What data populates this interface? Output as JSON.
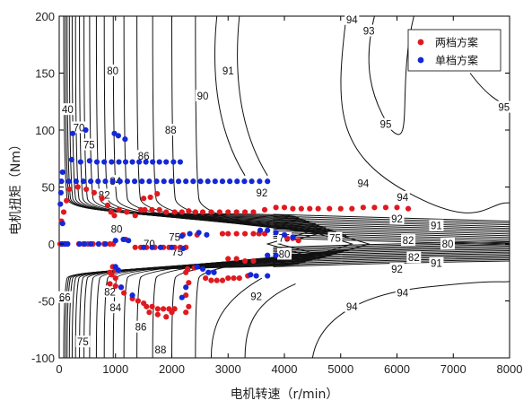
{
  "chart_data": {
    "type": "scatter",
    "title": "",
    "xlabel": "电机转速（r/min）",
    "ylabel": "电机扭矩（Nm）",
    "xlim": [
      0,
      8000
    ],
    "ylim": [
      -100,
      200
    ],
    "xticks": [
      "0",
      "1000",
      "2000",
      "3000",
      "4000",
      "5000",
      "6000",
      "7000",
      "8000"
    ],
    "yticks": [
      "200",
      "150",
      "100",
      "50",
      "0",
      "-50",
      "-100"
    ],
    "legend_position": "top-right",
    "contour_labels": [
      {
        "text": "94",
        "x": 5200,
        "y": 197
      },
      {
        "text": "93",
        "x": 5500,
        "y": 187
      },
      {
        "text": "80",
        "x": 950,
        "y": 152
      },
      {
        "text": "90",
        "x": 2550,
        "y": 130
      },
      {
        "text": "91",
        "x": 3000,
        "y": 152
      },
      {
        "text": "95",
        "x": 5800,
        "y": 105
      },
      {
        "text": "95",
        "x": 7900,
        "y": 120
      },
      {
        "text": "40",
        "x": 150,
        "y": 118
      },
      {
        "text": "70",
        "x": 350,
        "y": 102
      },
      {
        "text": "75",
        "x": 530,
        "y": 87
      },
      {
        "text": "88",
        "x": 1980,
        "y": 100
      },
      {
        "text": "86",
        "x": 1500,
        "y": 77
      },
      {
        "text": "84",
        "x": 1000,
        "y": 55
      },
      {
        "text": "82",
        "x": 800,
        "y": 43
      },
      {
        "text": "94",
        "x": 5400,
        "y": 53
      },
      {
        "text": "94",
        "x": 6100,
        "y": 41
      },
      {
        "text": "92",
        "x": 3600,
        "y": 45
      },
      {
        "text": "92",
        "x": 6000,
        "y": 22
      },
      {
        "text": "91",
        "x": 6700,
        "y": 16
      },
      {
        "text": "80",
        "x": 1020,
        "y": 13
      },
      {
        "text": "75",
        "x": 2050,
        "y": 6
      },
      {
        "text": "70",
        "x": 1600,
        "y": 0
      },
      {
        "text": "75",
        "x": 2100,
        "y": -7
      },
      {
        "text": "75",
        "x": 4000,
        "y": 5
      },
      {
        "text": "75",
        "x": 4900,
        "y": 5
      },
      {
        "text": "80",
        "x": 4000,
        "y": -9
      },
      {
        "text": "82",
        "x": 6200,
        "y": 3
      },
      {
        "text": "80",
        "x": 6900,
        "y": 0
      },
      {
        "text": "82",
        "x": 6300,
        "y": -12
      },
      {
        "text": "91",
        "x": 6700,
        "y": -17
      },
      {
        "text": "92",
        "x": 6000,
        "y": -22
      },
      {
        "text": "82",
        "x": 900,
        "y": -42
      },
      {
        "text": "84",
        "x": 1000,
        "y": -56
      },
      {
        "text": "86",
        "x": 1450,
        "y": -73
      },
      {
        "text": "88",
        "x": 1800,
        "y": -93
      },
      {
        "text": "92",
        "x": 3500,
        "y": -46
      },
      {
        "text": "94",
        "x": 6100,
        "y": -43
      },
      {
        "text": "94",
        "x": 5200,
        "y": -55
      },
      {
        "text": "75",
        "x": 420,
        "y": -86
      },
      {
        "text": "66",
        "x": 100,
        "y": -47
      }
    ],
    "series": [
      {
        "name": "两档方案",
        "color": "#e0191f",
        "points": [
          [
            15,
            0
          ],
          [
            50,
            0
          ],
          [
            100,
            0
          ],
          [
            40,
            20
          ],
          [
            80,
            28
          ],
          [
            130,
            38
          ],
          [
            180,
            48
          ],
          [
            330,
            50
          ],
          [
            480,
            48
          ],
          [
            620,
            45
          ],
          [
            760,
            40
          ],
          [
            860,
            34
          ],
          [
            920,
            28
          ],
          [
            980,
            25
          ],
          [
            1060,
            30
          ],
          [
            1200,
            28
          ],
          [
            1350,
            25
          ],
          [
            1450,
            30
          ],
          [
            1520,
            30
          ],
          [
            1650,
            30
          ],
          [
            1780,
            30
          ],
          [
            1900,
            28
          ],
          [
            2050,
            28
          ],
          [
            2180,
            28
          ],
          [
            2300,
            29
          ],
          [
            2420,
            28
          ],
          [
            2550,
            28
          ],
          [
            2700,
            28
          ],
          [
            2850,
            28
          ],
          [
            3000,
            28
          ],
          [
            3150,
            28
          ],
          [
            3300,
            28
          ],
          [
            3450,
            28
          ],
          [
            3650,
            30
          ],
          [
            3850,
            32
          ],
          [
            4000,
            32
          ],
          [
            4150,
            31
          ],
          [
            4300,
            31
          ],
          [
            4450,
            31
          ],
          [
            4600,
            31
          ],
          [
            4800,
            31
          ],
          [
            5000,
            31
          ],
          [
            5200,
            31
          ],
          [
            5400,
            32
          ],
          [
            5600,
            32
          ],
          [
            5800,
            32
          ],
          [
            6000,
            32
          ],
          [
            6200,
            31
          ],
          [
            1500,
            40
          ],
          [
            1620,
            41
          ],
          [
            1740,
            44
          ],
          [
            350,
            0
          ],
          [
            430,
            0
          ],
          [
            510,
            0
          ],
          [
            600,
            0
          ],
          [
            700,
            0
          ],
          [
            800,
            0
          ],
          [
            900,
            0
          ],
          [
            960,
            0
          ],
          [
            1180,
            4
          ],
          [
            2200,
            8
          ],
          [
            2450,
            8
          ],
          [
            2900,
            9
          ],
          [
            3000,
            9
          ],
          [
            3150,
            9
          ],
          [
            3300,
            9
          ],
          [
            3450,
            9
          ],
          [
            3550,
            9
          ],
          [
            3650,
            9
          ],
          [
            4050,
            5
          ],
          [
            4150,
            5
          ],
          [
            4250,
            3
          ],
          [
            1350,
            -3
          ],
          [
            1450,
            -3
          ],
          [
            1550,
            -3
          ],
          [
            1700,
            -3
          ],
          [
            1850,
            -3
          ],
          [
            1950,
            -3
          ],
          [
            2050,
            -3
          ],
          [
            2150,
            -3
          ],
          [
            2250,
            -3
          ],
          [
            3000,
            -13
          ],
          [
            3150,
            -13
          ],
          [
            3300,
            -15
          ],
          [
            3450,
            -15
          ],
          [
            950,
            -20
          ],
          [
            1000,
            -23
          ],
          [
            900,
            -25
          ],
          [
            930,
            -27
          ],
          [
            1000,
            -30
          ],
          [
            900,
            -35
          ],
          [
            1000,
            -37
          ],
          [
            1100,
            -38
          ],
          [
            1150,
            -43
          ],
          [
            2400,
            -21
          ],
          [
            2280,
            -22
          ],
          [
            2250,
            -25
          ],
          [
            2300,
            -34
          ],
          [
            2250,
            -45
          ],
          [
            2300,
            -55
          ],
          [
            2250,
            -60
          ],
          [
            2600,
            -30
          ],
          [
            2700,
            -32
          ],
          [
            2800,
            -32
          ],
          [
            2900,
            -32
          ],
          [
            3000,
            -30
          ],
          [
            3100,
            -30
          ],
          [
            3200,
            -30
          ],
          [
            3350,
            -28
          ],
          [
            1300,
            -48
          ],
          [
            1400,
            -50
          ],
          [
            1500,
            -52
          ],
          [
            1550,
            -55
          ],
          [
            1650,
            -55
          ],
          [
            1750,
            -57
          ],
          [
            1850,
            -57
          ],
          [
            1950,
            -57
          ],
          [
            2050,
            -57
          ],
          [
            1600,
            -60
          ],
          [
            1750,
            -62
          ],
          [
            1900,
            -64
          ],
          [
            2000,
            -60
          ]
        ]
      },
      {
        "name": "单档方案",
        "color": "#1428d8",
        "points": [
          [
            60,
            63
          ],
          [
            40,
            55
          ],
          [
            30,
            45
          ],
          [
            20,
            35
          ],
          [
            60,
            18
          ],
          [
            50,
            0
          ],
          [
            100,
            0
          ],
          [
            150,
            0
          ],
          [
            240,
            97
          ],
          [
            470,
            100
          ],
          [
            980,
            97
          ],
          [
            1050,
            95
          ],
          [
            1170,
            92
          ],
          [
            220,
            74
          ],
          [
            380,
            72
          ],
          [
            540,
            73
          ],
          [
            670,
            72
          ],
          [
            800,
            72
          ],
          [
            930,
            72
          ],
          [
            1060,
            72
          ],
          [
            1180,
            72
          ],
          [
            1300,
            72
          ],
          [
            1420,
            72
          ],
          [
            1540,
            72
          ],
          [
            1660,
            72
          ],
          [
            1780,
            72
          ],
          [
            1900,
            72
          ],
          [
            2030,
            72
          ],
          [
            2150,
            72
          ],
          [
            170,
            55
          ],
          [
            300,
            55
          ],
          [
            430,
            55
          ],
          [
            560,
            55
          ],
          [
            690,
            55
          ],
          [
            820,
            55
          ],
          [
            950,
            55
          ],
          [
            1080,
            55
          ],
          [
            1210,
            55
          ],
          [
            1340,
            55
          ],
          [
            1470,
            55
          ],
          [
            1600,
            55
          ],
          [
            1730,
            55
          ],
          [
            1860,
            55
          ],
          [
            1990,
            55
          ],
          [
            2120,
            55
          ],
          [
            2250,
            55
          ],
          [
            2380,
            55
          ],
          [
            2510,
            55
          ],
          [
            2640,
            55
          ],
          [
            2770,
            55
          ],
          [
            2900,
            55
          ],
          [
            3030,
            55
          ],
          [
            3160,
            55
          ],
          [
            3290,
            55
          ],
          [
            3420,
            55
          ],
          [
            3560,
            55
          ],
          [
            3700,
            55
          ],
          [
            360,
            0
          ],
          [
            450,
            0
          ],
          [
            560,
            0
          ],
          [
            700,
            0
          ],
          [
            820,
            0
          ],
          [
            1000,
            3
          ],
          [
            1140,
            4
          ],
          [
            1230,
            3
          ],
          [
            2180,
            7
          ],
          [
            2320,
            9
          ],
          [
            2480,
            10
          ],
          [
            2620,
            8
          ],
          [
            3570,
            12
          ],
          [
            3700,
            12
          ],
          [
            3850,
            10
          ],
          [
            4000,
            8
          ],
          [
            4150,
            6
          ],
          [
            1500,
            -3
          ],
          [
            1650,
            -3
          ],
          [
            1800,
            -3
          ],
          [
            2000,
            -3
          ],
          [
            2200,
            -4
          ],
          [
            3700,
            -10
          ],
          [
            3850,
            -10
          ],
          [
            1000,
            -20
          ],
          [
            1050,
            -23
          ],
          [
            2450,
            -20
          ],
          [
            2550,
            -22
          ],
          [
            2650,
            -25
          ],
          [
            2750,
            -25
          ],
          [
            3400,
            -27
          ],
          [
            3500,
            -28
          ],
          [
            3700,
            -28
          ],
          [
            1100,
            -38
          ],
          [
            2250,
            -38
          ],
          [
            1300,
            -45
          ],
          [
            2180,
            -47
          ]
        ]
      }
    ]
  }
}
